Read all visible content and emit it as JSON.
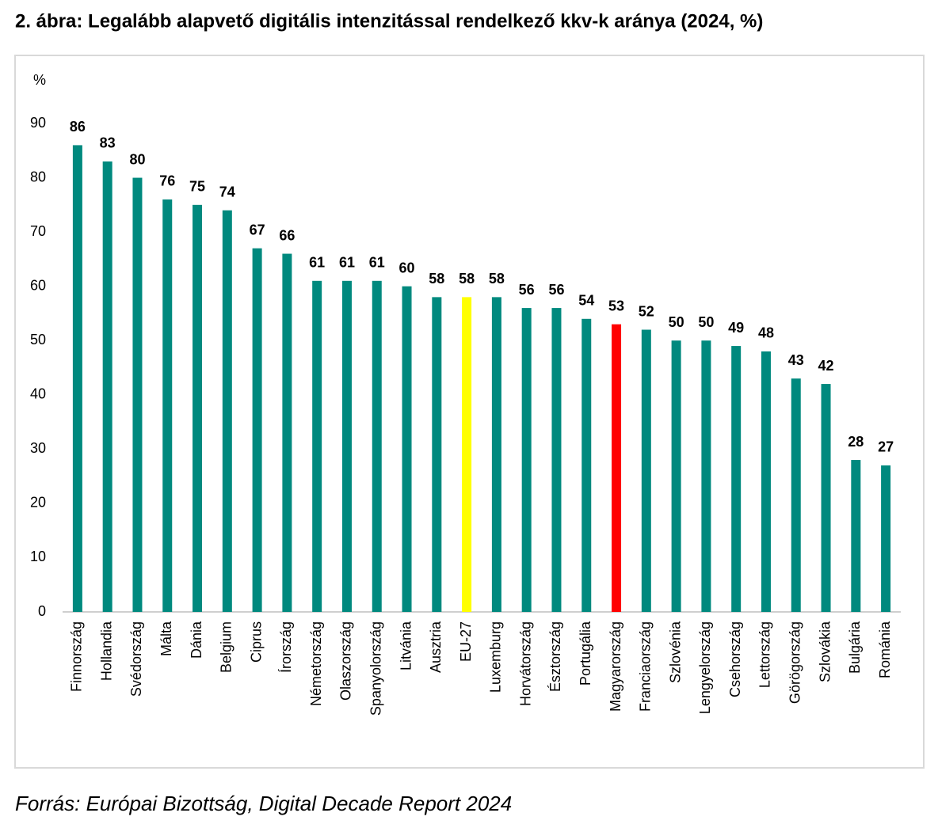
{
  "chart_data": {
    "type": "bar",
    "title": "2. ábra: Legalább alapvető digitális intenzitással rendelkező kkv-k aránya (2024, %)",
    "ylabel": "%",
    "source": "Forrás: Európai Bizottság, Digital Decade Report 2024",
    "categories": [
      "Finnország",
      "Hollandia",
      "Svédország",
      "Málta",
      "Dánia",
      "Belgium",
      "Ciprus",
      "Írország",
      "Németország",
      "Olaszország",
      "Spanyolország",
      "Litvánia",
      "Ausztria",
      "EU-27",
      "Luxemburg",
      "Horvátország",
      "Észtország",
      "Portugália",
      "Magyarország",
      "Franciaország",
      "Szlovénia",
      "Lengyelország",
      "Csehország",
      "Lettország",
      "Görögország",
      "Szlovákia",
      "Bulgária",
      "Románia"
    ],
    "values": [
      86,
      83,
      80,
      76,
      75,
      74,
      67,
      66,
      61,
      61,
      61,
      60,
      58,
      58,
      58,
      56,
      56,
      54,
      53,
      52,
      50,
      50,
      49,
      48,
      43,
      42,
      28,
      27
    ],
    "colors": [
      "#00897e",
      "#00897e",
      "#00897e",
      "#00897e",
      "#00897e",
      "#00897e",
      "#00897e",
      "#00897e",
      "#00897e",
      "#00897e",
      "#00897e",
      "#00897e",
      "#00897e",
      "#ffff00",
      "#00897e",
      "#00897e",
      "#00897e",
      "#00897e",
      "#ff0000",
      "#00897e",
      "#00897e",
      "#00897e",
      "#00897e",
      "#00897e",
      "#00897e",
      "#00897e",
      "#00897e",
      "#00897e"
    ],
    "ylim": [
      0,
      90
    ],
    "yticks": [
      0,
      10,
      20,
      30,
      40,
      50,
      60,
      70,
      80,
      90
    ],
    "grid": false
  }
}
